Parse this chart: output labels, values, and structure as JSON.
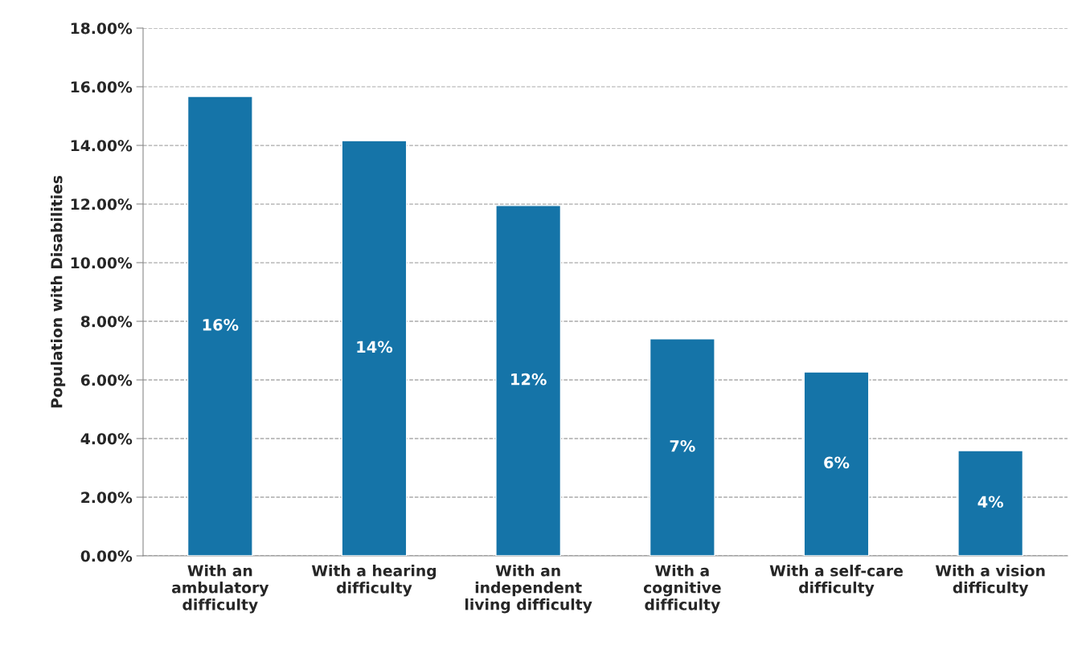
{
  "chart_data": {
    "type": "bar",
    "ylabel": "Population with Disabilities",
    "categories": [
      "With an\nambulatory\ndifficulty",
      "With a hearing\ndifficulty",
      "With an\nindependent\nliving difficulty",
      "With a\ncognitive\ndifficulty",
      "With a self-care\ndifficulty",
      "With a vision\ndifficulty"
    ],
    "values": [
      15.67,
      14.16,
      11.95,
      7.4,
      6.27,
      3.59
    ],
    "value_labels": [
      "16%",
      "14%",
      "12%",
      "7%",
      "6%",
      "4%"
    ],
    "color": "#1574a8",
    "ylim": [
      0,
      18
    ],
    "yticks": [
      {
        "value": 0,
        "label": "0.00%"
      },
      {
        "value": 2,
        "label": "2.00%"
      },
      {
        "value": 4,
        "label": "4.00%"
      },
      {
        "value": 6,
        "label": "6.00%"
      },
      {
        "value": 8,
        "label": "8.00%"
      },
      {
        "value": 10,
        "label": "10.00%"
      },
      {
        "value": 12,
        "label": "12.00%"
      },
      {
        "value": 14,
        "label": "14.00%"
      },
      {
        "value": 16,
        "label": "16.00%"
      },
      {
        "value": 18,
        "label": "18.00%"
      }
    ],
    "grid": "y",
    "legend": false
  }
}
